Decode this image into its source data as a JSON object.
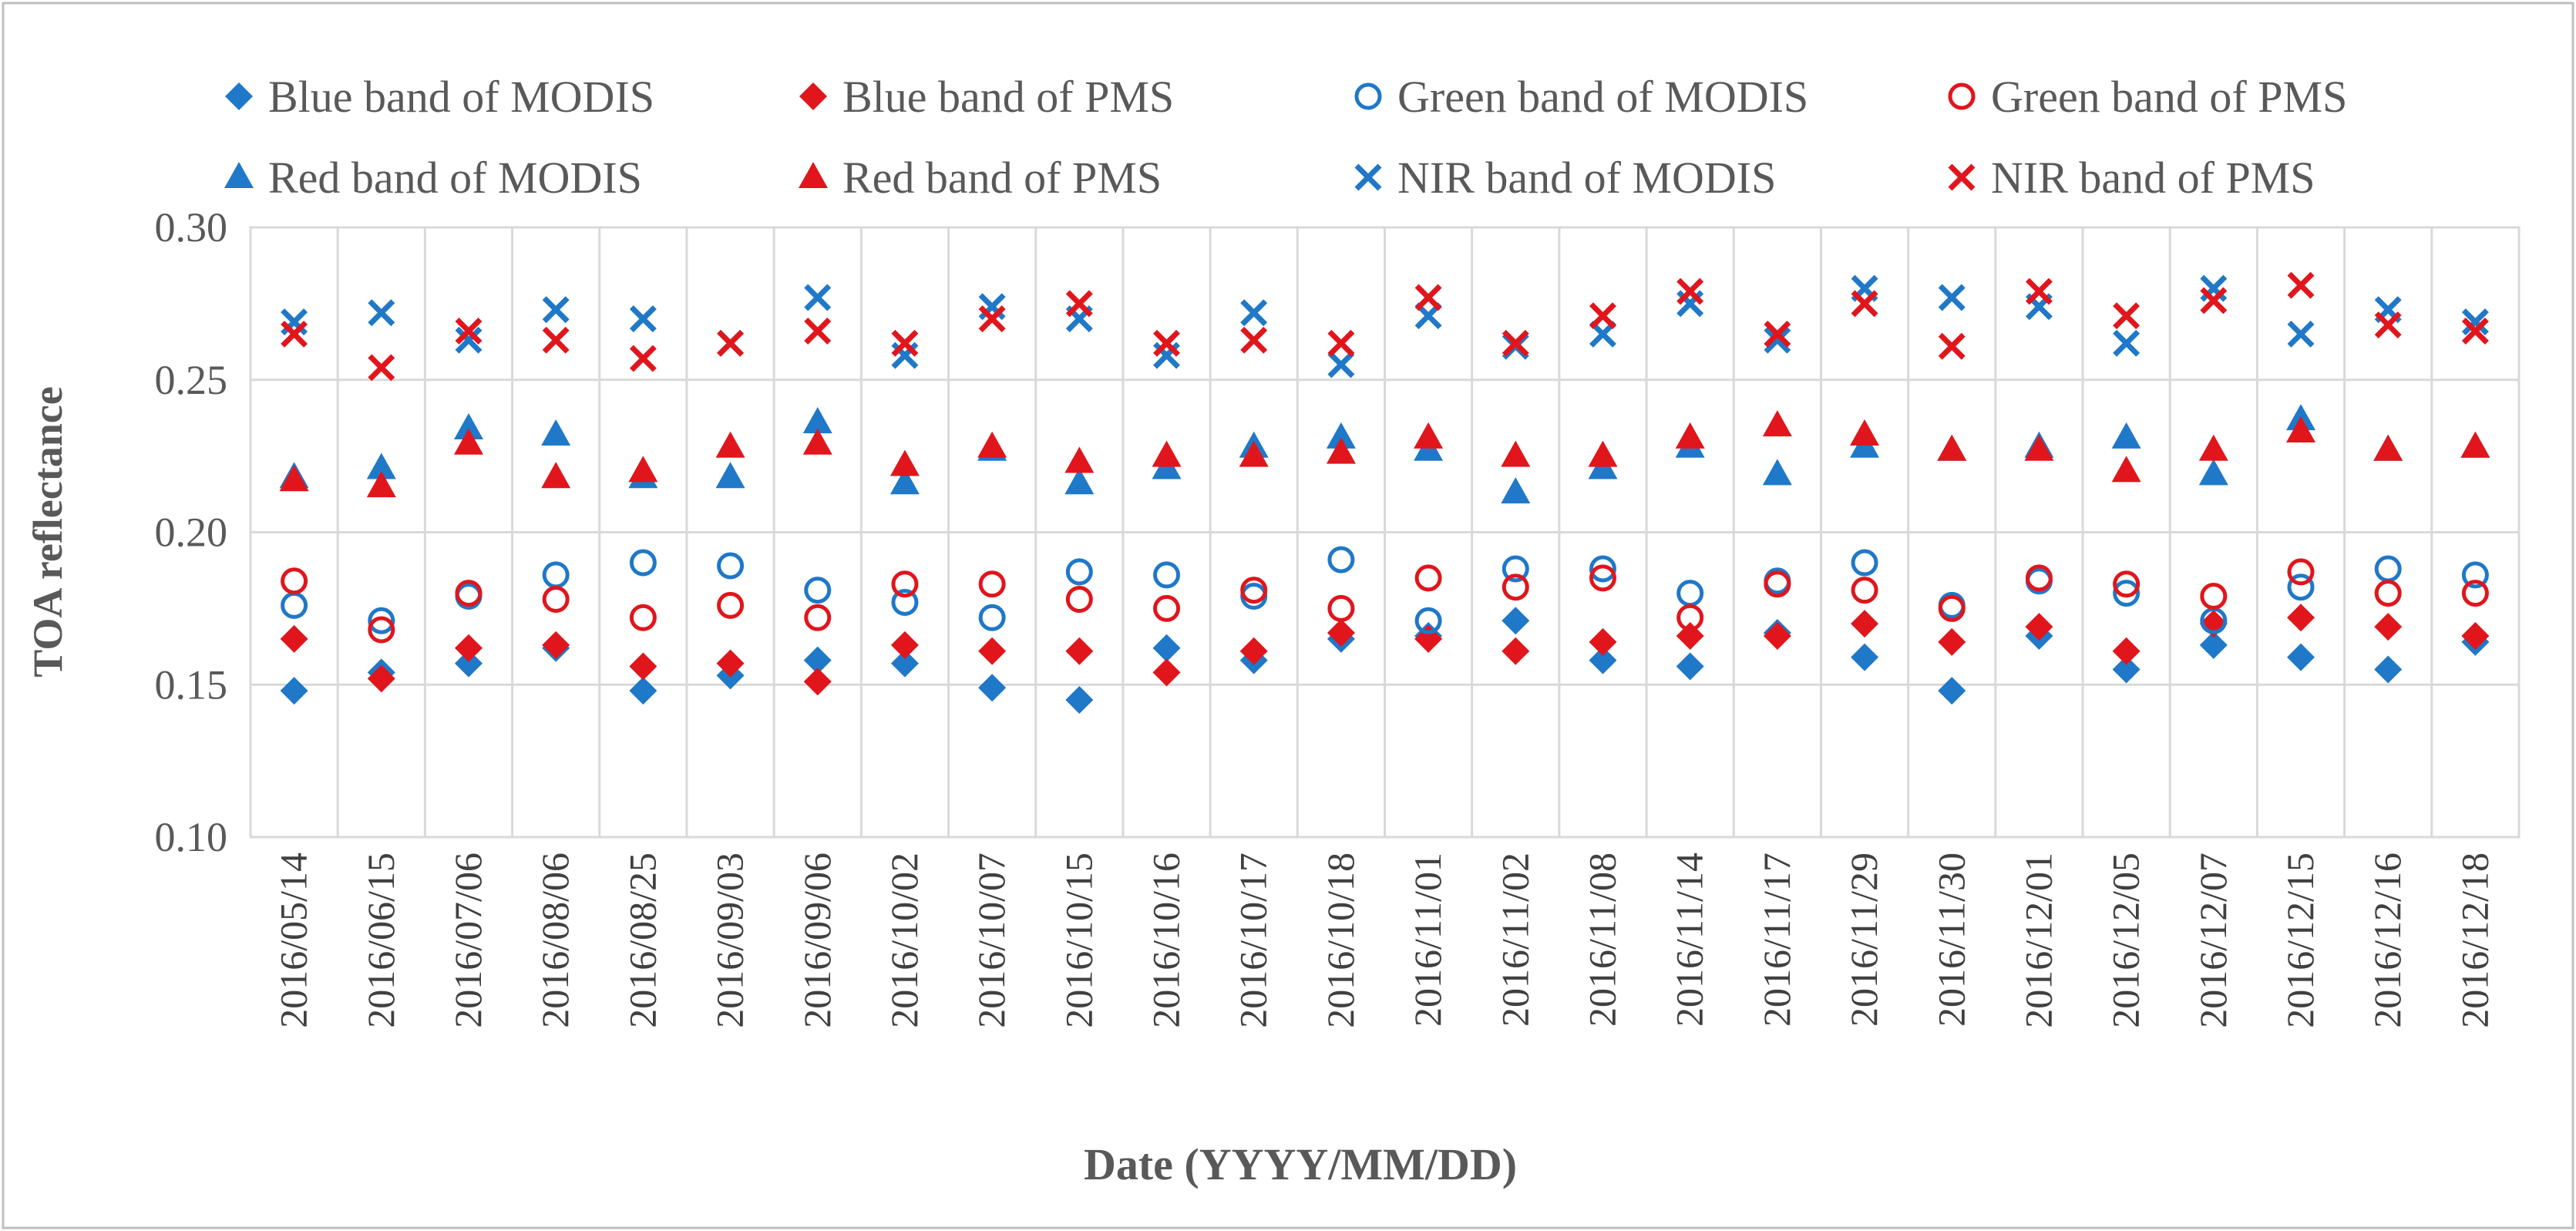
{
  "chart_data": {
    "type": "scatter",
    "xlabel": "Date (YYYY/MM/DD)",
    "ylabel": "TOA reflectance",
    "ylim": [
      0.1,
      0.3
    ],
    "yticks": [
      "0.10",
      "0.15",
      "0.20",
      "0.25",
      "0.30"
    ],
    "ytick_values": [
      0.1,
      0.15,
      0.2,
      0.25,
      0.3
    ],
    "grid": true,
    "legend_position": "top",
    "categories": [
      "2016/05/14",
      "2016/06/15",
      "2016/07/06",
      "2016/08/06",
      "2016/08/25",
      "2016/09/03",
      "2016/09/06",
      "2016/10/02",
      "2016/10/07",
      "2016/10/15",
      "2016/10/16",
      "2016/10/17",
      "2016/10/18",
      "2016/11/01",
      "2016/11/02",
      "2016/11/08",
      "2016/11/14",
      "2016/11/17",
      "2016/11/29",
      "2016/11/30",
      "2016/12/01",
      "2016/12/05",
      "2016/12/07",
      "2016/12/15",
      "2016/12/16",
      "2016/12/18"
    ],
    "series": [
      {
        "name": "Blue band of MODIS",
        "marker": "diamond",
        "color": "#1f78c8",
        "filled": true,
        "values": [
          0.148,
          0.154,
          0.157,
          0.162,
          0.148,
          0.153,
          0.158,
          0.157,
          0.149,
          0.145,
          0.162,
          0.158,
          0.165,
          0.166,
          0.171,
          0.158,
          0.156,
          0.167,
          0.159,
          0.148,
          0.166,
          0.155,
          0.163,
          0.159,
          0.155,
          0.164
        ]
      },
      {
        "name": "Blue band of PMS",
        "marker": "diamond",
        "color": "#e0161c",
        "filled": true,
        "values": [
          0.165,
          0.152,
          0.162,
          0.163,
          0.156,
          0.157,
          0.151,
          0.163,
          0.161,
          0.161,
          0.154,
          0.161,
          0.167,
          0.165,
          0.161,
          0.164,
          0.166,
          0.166,
          0.17,
          0.164,
          0.169,
          0.161,
          0.17,
          0.172,
          0.169,
          0.166
        ]
      },
      {
        "name": "Green band of MODIS",
        "marker": "circle",
        "color": "#1f78c8",
        "filled": false,
        "values": [
          0.176,
          0.171,
          0.179,
          0.186,
          0.19,
          0.189,
          0.181,
          0.177,
          0.172,
          0.187,
          0.186,
          0.179,
          0.191,
          0.171,
          0.188,
          0.188,
          0.18,
          0.184,
          0.19,
          0.176,
          0.184,
          0.18,
          0.171,
          0.182,
          0.188,
          0.186
        ]
      },
      {
        "name": "Green band of PMS",
        "marker": "circle",
        "color": "#e0161c",
        "filled": false,
        "values": [
          0.184,
          0.168,
          0.18,
          0.178,
          0.172,
          0.176,
          0.172,
          0.183,
          0.183,
          0.178,
          0.175,
          0.181,
          0.175,
          0.185,
          0.182,
          0.185,
          0.172,
          0.183,
          0.181,
          0.175,
          0.185,
          0.183,
          0.179,
          0.187,
          0.18,
          0.18
        ]
      },
      {
        "name": "Red band of MODIS",
        "marker": "triangle",
        "color": "#1f78c8",
        "filled": true,
        "values": [
          0.218,
          0.221,
          0.234,
          0.232,
          0.218,
          0.218,
          0.236,
          0.216,
          0.227,
          0.216,
          0.221,
          0.228,
          0.231,
          0.227,
          0.213,
          0.221,
          0.228,
          0.219,
          0.228,
          0.227,
          0.228,
          0.231,
          0.219,
          0.237,
          0.227,
          0.228
        ]
      },
      {
        "name": "Red band of PMS",
        "marker": "triangle",
        "color": "#e0161c",
        "filled": true,
        "values": [
          0.217,
          0.215,
          0.229,
          0.218,
          0.22,
          0.228,
          0.229,
          0.222,
          0.228,
          0.223,
          0.225,
          0.225,
          0.226,
          0.231,
          0.225,
          0.225,
          0.231,
          0.235,
          0.232,
          0.227,
          0.227,
          0.22,
          0.227,
          0.233,
          0.227,
          0.228
        ]
      },
      {
        "name": "NIR band of MODIS",
        "marker": "x",
        "color": "#1f78c8",
        "filled": false,
        "values": [
          0.269,
          0.272,
          0.263,
          0.273,
          0.27,
          0.262,
          0.277,
          0.258,
          0.274,
          0.27,
          0.258,
          0.272,
          0.255,
          0.271,
          0.261,
          0.265,
          0.275,
          0.263,
          0.28,
          0.277,
          0.274,
          0.262,
          0.28,
          0.265,
          0.273,
          0.269
        ]
      },
      {
        "name": "NIR band of PMS",
        "marker": "x",
        "color": "#e0161c",
        "filled": false,
        "values": [
          0.265,
          0.254,
          0.266,
          0.263,
          0.257,
          0.262,
          0.266,
          0.262,
          0.27,
          0.275,
          0.262,
          0.263,
          0.262,
          0.277,
          0.262,
          0.271,
          0.279,
          0.265,
          0.275,
          0.261,
          0.279,
          0.271,
          0.276,
          0.281,
          0.268,
          0.266
        ]
      }
    ]
  }
}
